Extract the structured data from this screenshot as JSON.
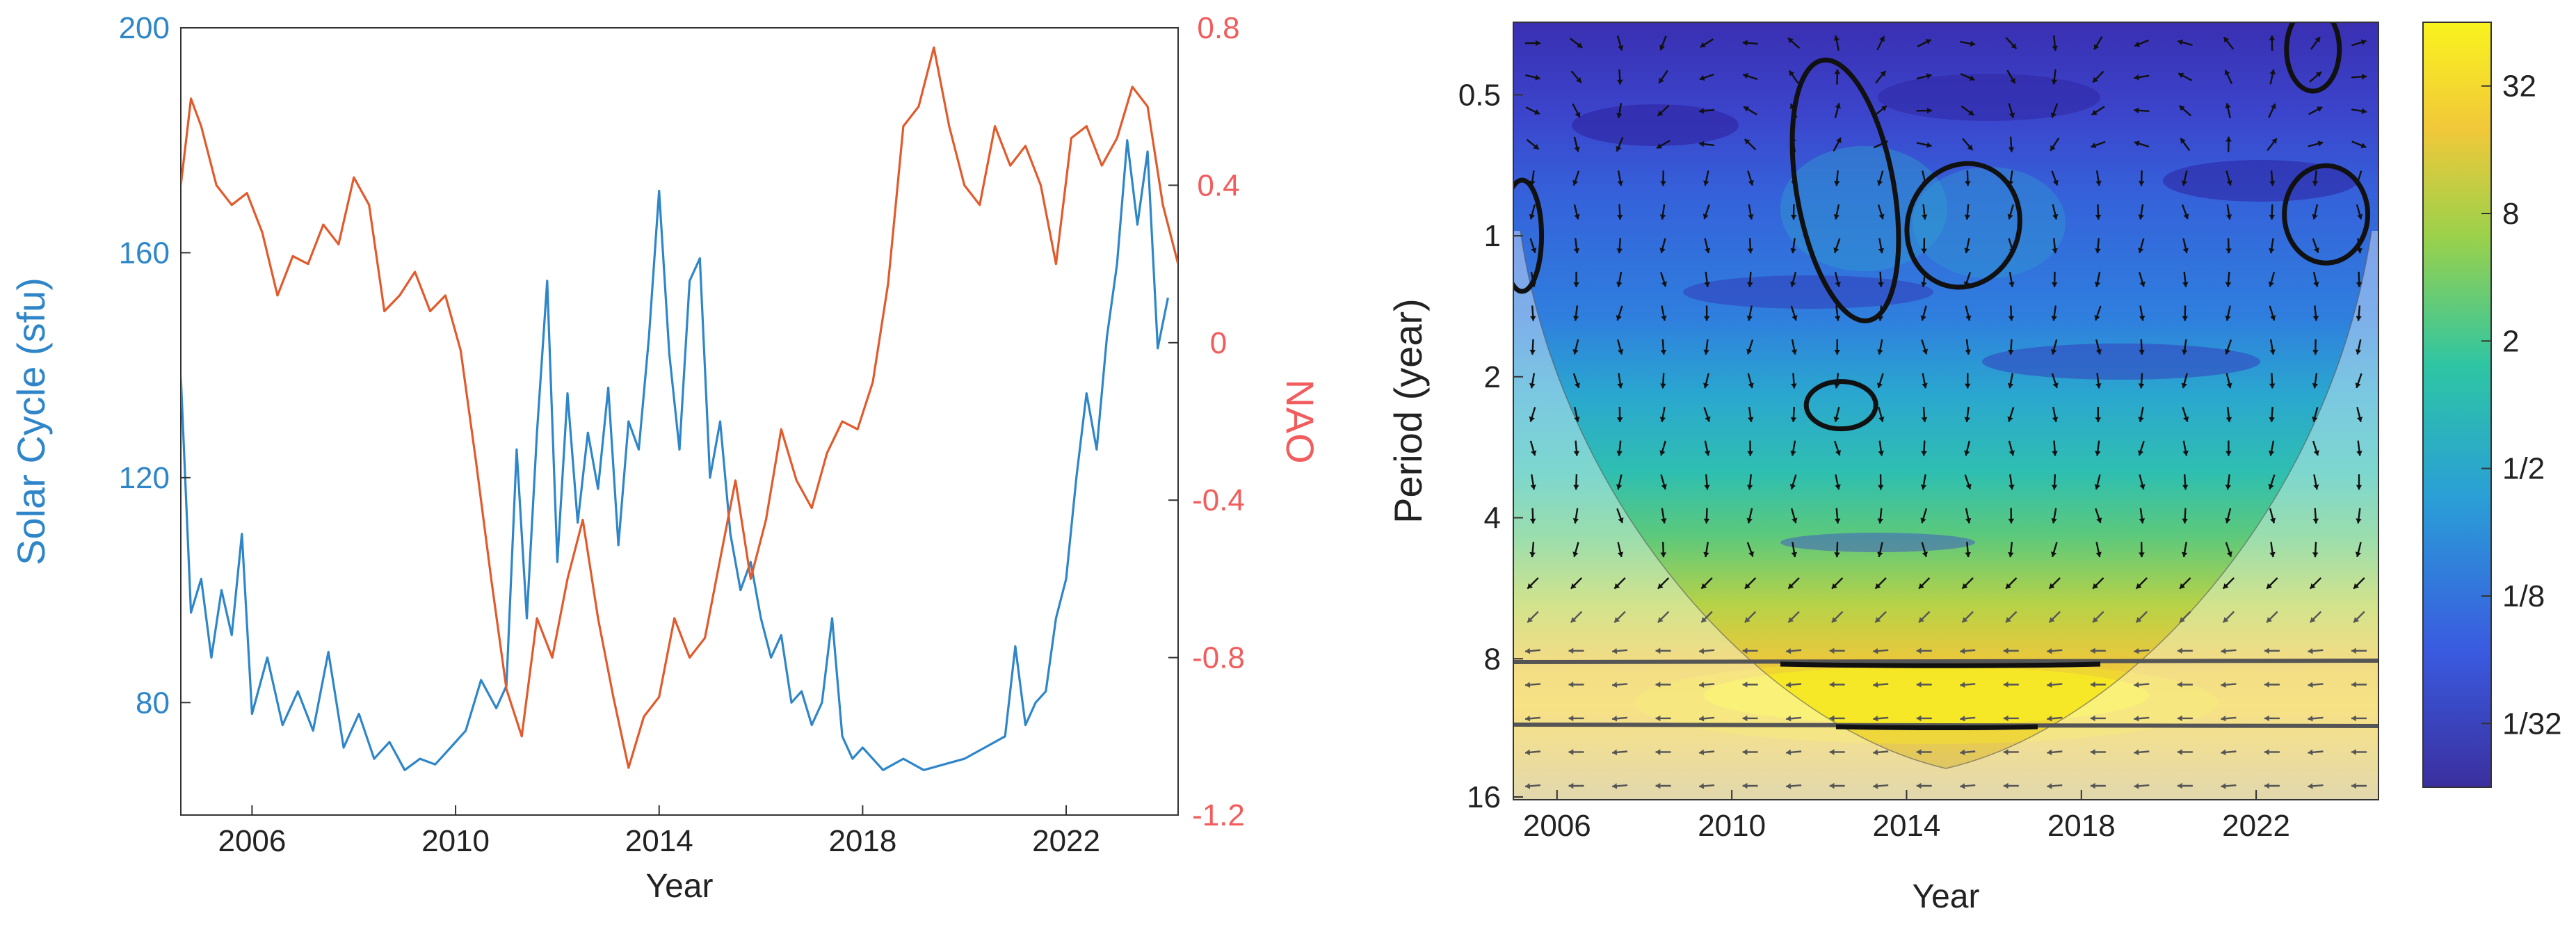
{
  "chart_data": [
    {
      "type": "line",
      "title": "",
      "xlabel": "Year",
      "ylabel_left": "Solar Cycle (sfu)",
      "ylabel_right": "NAO",
      "xlim": [
        2004.6,
        2024.2
      ],
      "ylim_left": [
        60,
        200
      ],
      "ylim_right": [
        -1.2,
        0.8
      ],
      "x_ticks": [
        2006,
        2010,
        2014,
        2018,
        2022
      ],
      "y_ticks_left": [
        80,
        120,
        160,
        200
      ],
      "y_ticks_right": [
        -1.2,
        -0.8,
        -0.4,
        0,
        0.4,
        0.8
      ],
      "y_tick_labels_right": [
        "-1.2",
        "-0.8",
        "-0.4",
        "0",
        "0.4",
        "0.8"
      ],
      "colors": {
        "solar": "#2E86C9",
        "nao": "#E25A2C",
        "left_axis_text": "#2E86C9",
        "right_axis_text": "#F25C5C"
      },
      "series": [
        {
          "name": "Solar Cycle (sfu)",
          "axis": "left",
          "x": [
            2004.6,
            2004.8,
            2005.0,
            2005.2,
            2005.4,
            2005.6,
            2005.8,
            2006.0,
            2006.3,
            2006.6,
            2006.9,
            2007.2,
            2007.5,
            2007.8,
            2008.1,
            2008.4,
            2008.7,
            2009.0,
            2009.3,
            2009.6,
            2009.9,
            2010.2,
            2010.5,
            2010.8,
            2011.0,
            2011.2,
            2011.4,
            2011.6,
            2011.8,
            2012.0,
            2012.2,
            2012.4,
            2012.6,
            2012.8,
            2013.0,
            2013.2,
            2013.4,
            2013.6,
            2013.8,
            2014.0,
            2014.2,
            2014.4,
            2014.6,
            2014.8,
            2015.0,
            2015.2,
            2015.4,
            2015.6,
            2015.8,
            2016.0,
            2016.2,
            2016.4,
            2016.6,
            2016.8,
            2017.0,
            2017.2,
            2017.4,
            2017.6,
            2017.8,
            2018.0,
            2018.4,
            2018.8,
            2019.2,
            2019.6,
            2020.0,
            2020.4,
            2020.8,
            2021.0,
            2021.2,
            2021.4,
            2021.6,
            2021.8,
            2022.0,
            2022.2,
            2022.4,
            2022.6,
            2022.8,
            2023.0,
            2023.2,
            2023.4,
            2023.6,
            2023.8,
            2024.0
          ],
          "values": [
            138,
            96,
            102,
            88,
            100,
            92,
            110,
            78,
            88,
            76,
            82,
            75,
            89,
            72,
            78,
            70,
            73,
            68,
            70,
            69,
            72,
            75,
            84,
            79,
            83,
            125,
            95,
            128,
            155,
            105,
            135,
            112,
            128,
            118,
            136,
            108,
            130,
            125,
            145,
            171,
            142,
            125,
            155,
            159,
            120,
            130,
            110,
            100,
            105,
            95,
            88,
            92,
            80,
            82,
            76,
            80,
            95,
            74,
            70,
            72,
            68,
            70,
            68,
            69,
            70,
            72,
            74,
            90,
            76,
            80,
            82,
            95,
            102,
            120,
            135,
            125,
            145,
            158,
            180,
            165,
            178,
            143,
            152
          ]
        },
        {
          "name": "NAO",
          "axis": "right",
          "x": [
            2004.6,
            2004.8,
            2005.0,
            2005.3,
            2005.6,
            2005.9,
            2006.2,
            2006.5,
            2006.8,
            2007.1,
            2007.4,
            2007.7,
            2008.0,
            2008.3,
            2008.6,
            2008.9,
            2009.2,
            2009.5,
            2009.8,
            2010.1,
            2010.4,
            2010.7,
            2011.0,
            2011.3,
            2011.6,
            2011.9,
            2012.2,
            2012.5,
            2012.8,
            2013.1,
            2013.4,
            2013.7,
            2014.0,
            2014.3,
            2014.6,
            2014.9,
            2015.2,
            2015.5,
            2015.8,
            2016.1,
            2016.4,
            2016.7,
            2017.0,
            2017.3,
            2017.6,
            2017.9,
            2018.2,
            2018.5,
            2018.8,
            2019.1,
            2019.4,
            2019.7,
            2020.0,
            2020.3,
            2020.6,
            2020.9,
            2021.2,
            2021.5,
            2021.8,
            2022.1,
            2022.4,
            2022.7,
            2023.0,
            2023.3,
            2023.6,
            2023.9,
            2024.2
          ],
          "values": [
            0.4,
            0.62,
            0.55,
            0.4,
            0.35,
            0.38,
            0.28,
            0.12,
            0.22,
            0.2,
            0.3,
            0.25,
            0.42,
            0.35,
            0.08,
            0.12,
            0.18,
            0.08,
            0.12,
            -0.02,
            -0.3,
            -0.6,
            -0.88,
            -1.0,
            -0.7,
            -0.8,
            -0.6,
            -0.45,
            -0.7,
            -0.9,
            -1.08,
            -0.95,
            -0.9,
            -0.7,
            -0.8,
            -0.75,
            -0.55,
            -0.35,
            -0.6,
            -0.45,
            -0.22,
            -0.35,
            -0.42,
            -0.28,
            -0.2,
            -0.22,
            -0.1,
            0.15,
            0.55,
            0.6,
            0.75,
            0.55,
            0.4,
            0.35,
            0.55,
            0.45,
            0.5,
            0.4,
            0.2,
            0.52,
            0.55,
            0.45,
            0.52,
            0.65,
            0.6,
            0.35,
            0.2
          ]
        }
      ]
    },
    {
      "type": "heatmap",
      "title": "",
      "xlabel": "Year",
      "ylabel": "Period (year)",
      "xlim": [
        2005.0,
        2024.8
      ],
      "ylim_period": [
        0.35,
        16
      ],
      "y_axis_scale": "log2, reversed",
      "x_ticks": [
        2006,
        2010,
        2014,
        2018,
        2022
      ],
      "y_ticks": [
        0.5,
        1,
        2,
        4,
        8,
        16
      ],
      "y_tick_labels": [
        "0.5",
        "1",
        "2",
        "4",
        "8",
        "16"
      ],
      "colorbar": {
        "scale": "log2",
        "ticks": [
          0.03125,
          0.125,
          0.5,
          2,
          8,
          32
        ],
        "tick_labels": [
          "1/32",
          "1/8",
          "1/2",
          "2",
          "8",
          "32"
        ],
        "colormap_stops": [
          "#3B2F9E",
          "#3A5BE0",
          "#2A9FD6",
          "#2EC5A4",
          "#9BD14B",
          "#F1C83A",
          "#F9F31E"
        ]
      },
      "significance_contours_period_centers": [
        {
          "x": 2012.6,
          "period": 0.8
        },
        {
          "x": 2015.3,
          "period": 0.95
        },
        {
          "x": 2012.5,
          "period": 2.3
        },
        {
          "x": 2023.6,
          "period": 0.9
        },
        {
          "x": 2005.2,
          "period": 1.0
        },
        {
          "x": 2023.3,
          "period": 0.4
        }
      ],
      "dominant_bands_period": [
        8,
        12
      ]
    }
  ]
}
